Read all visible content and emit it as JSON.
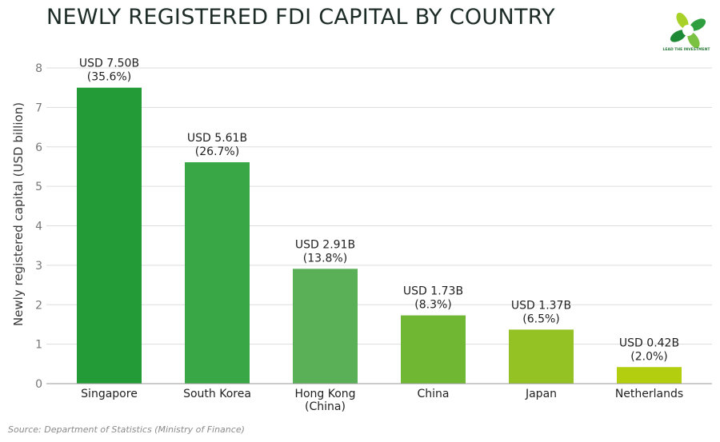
{
  "logo_text": "LEAD THE INVESTMENT",
  "source": "Source: Department of Statistics (Ministry of Finance)",
  "chart_data": {
    "type": "bar",
    "title": "NEWLY REGISTERED FDI CAPITAL BY COUNTRY",
    "xlabel": "",
    "ylabel": "Newly registered capital (USD billion)",
    "ylim": [
      0,
      8
    ],
    "yticks": [
      "0",
      "1",
      "2",
      "3",
      "4",
      "5",
      "6",
      "7",
      "8"
    ],
    "grid": true,
    "categories": [
      "Singapore",
      "South Korea",
      "Hong Kong\n(China)",
      "China",
      "Japan",
      "Netherlands"
    ],
    "values": [
      7.5,
      5.61,
      2.91,
      1.73,
      1.37,
      0.42
    ],
    "data_labels": [
      [
        "USD 7.50B",
        "(35.6%)"
      ],
      [
        "USD 5.61B",
        "(26.7%)"
      ],
      [
        "USD 2.91B",
        "(13.8%)"
      ],
      [
        "USD 1.73B",
        "(8.3%)"
      ],
      [
        "USD 1.37B",
        "(6.5%)"
      ],
      [
        "USD 0.42B",
        "(2.0%)"
      ]
    ],
    "colors": [
      "#239c37",
      "#3aa747",
      "#59b056",
      "#70b734",
      "#94c123",
      "#b3cd0f"
    ]
  }
}
